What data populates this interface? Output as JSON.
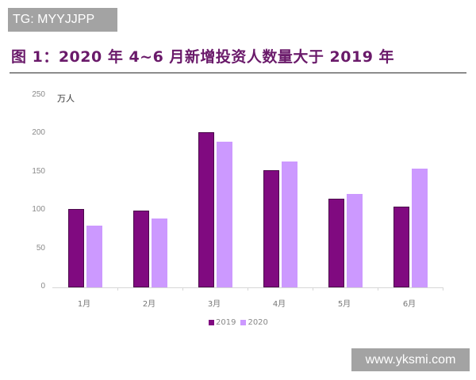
{
  "watermark_top": "TG: MYYJJPP",
  "watermark_bottom": "www.yksmi.com",
  "figure_title": "图 1：2020 年 4~6 月新增投资人数量大于 2019 年",
  "colors": {
    "series_2019": "#800a80",
    "series_2020": "#cc99ff",
    "title": "#6a1a6a"
  },
  "chart_data": {
    "type": "bar",
    "title": "图 1：2020 年 4~6 月新增投资人数量大于 2019 年",
    "xlabel": "",
    "ylabel": "万人",
    "ylim": [
      0,
      250
    ],
    "yticks": [
      0,
      50,
      100,
      150,
      200,
      250
    ],
    "grid": false,
    "legend_position": "bottom",
    "categories": [
      "1月",
      "2月",
      "3月",
      "4月",
      "5月",
      "6月"
    ],
    "series": [
      {
        "name": "2019",
        "color": "#800a80",
        "values": [
          102,
          100,
          202,
          153,
          115,
          105
        ]
      },
      {
        "name": "2020",
        "color": "#cc99ff",
        "values": [
          80,
          90,
          190,
          164,
          122,
          155
        ]
      }
    ]
  }
}
